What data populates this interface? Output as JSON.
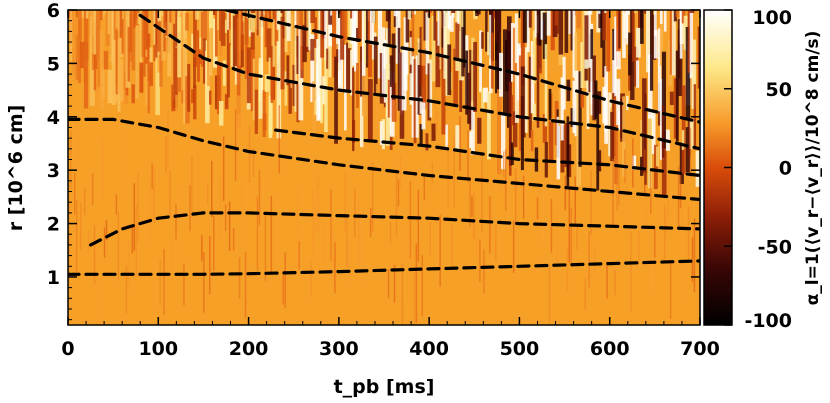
{
  "chart_data": {
    "type": "heatmap",
    "title": "",
    "xlabel": "t_pb [ms]",
    "ylabel": "r [10^6 cm]",
    "colorbar_label": "α_l=1(⟨v_r−⟨v_r⟩⟩/10^8 cm/s)",
    "xlim": [
      0,
      700
    ],
    "ylim": [
      0.1,
      6.0
    ],
    "clim": [
      -100,
      100
    ],
    "xticks": [
      "0",
      "100",
      "200",
      "300",
      "400",
      "500",
      "600",
      "700"
    ],
    "yticks": [
      "1",
      "2",
      "3",
      "4",
      "5",
      "6"
    ],
    "cbar_ticks": [
      "100",
      "50",
      "0",
      "-50",
      "-100"
    ],
    "colormap": [
      "#000000",
      "#3a0606",
      "#8b1e07",
      "#d94d0a",
      "#f79a2a",
      "#fde98a",
      "#ffffff"
    ],
    "background_color": "#f7a028",
    "series": [
      {
        "style": "dashed",
        "color": "#000000",
        "x": [
          0,
          50,
          100,
          150,
          200,
          300,
          400,
          500,
          600,
          700
        ],
        "y": [
          1.05,
          1.05,
          1.05,
          1.05,
          1.06,
          1.1,
          1.15,
          1.2,
          1.25,
          1.3
        ]
      },
      {
        "style": "dashed",
        "color": "#000000",
        "x": [
          25,
          60,
          100,
          150,
          200,
          300,
          400,
          500,
          600,
          700
        ],
        "y": [
          1.6,
          1.9,
          2.1,
          2.2,
          2.2,
          2.15,
          2.1,
          2.0,
          1.95,
          1.9
        ]
      },
      {
        "style": "dashed",
        "color": "#000000",
        "x": [
          0,
          50,
          100,
          150,
          200,
          300,
          400,
          500,
          600,
          700
        ],
        "y": [
          3.95,
          3.95,
          3.8,
          3.55,
          3.35,
          3.1,
          2.9,
          2.75,
          2.6,
          2.45
        ]
      },
      {
        "style": "dashed",
        "color": "#000000",
        "x": [
          230,
          300,
          400,
          500,
          600,
          700
        ],
        "y": [
          3.75,
          3.6,
          3.45,
          3.2,
          3.1,
          2.9
        ]
      },
      {
        "style": "dashed",
        "color": "#000000",
        "x": [
          80,
          150,
          200,
          300,
          400,
          500,
          600,
          700
        ],
        "y": [
          5.9,
          5.1,
          4.8,
          4.5,
          4.3,
          4.0,
          3.8,
          3.4
        ]
      },
      {
        "style": "dashed",
        "color": "#000000",
        "x": [
          175,
          250,
          300,
          400,
          500,
          600,
          700
        ],
        "y": [
          6.0,
          5.7,
          5.5,
          5.2,
          4.8,
          4.3,
          3.9
        ]
      }
    ]
  }
}
